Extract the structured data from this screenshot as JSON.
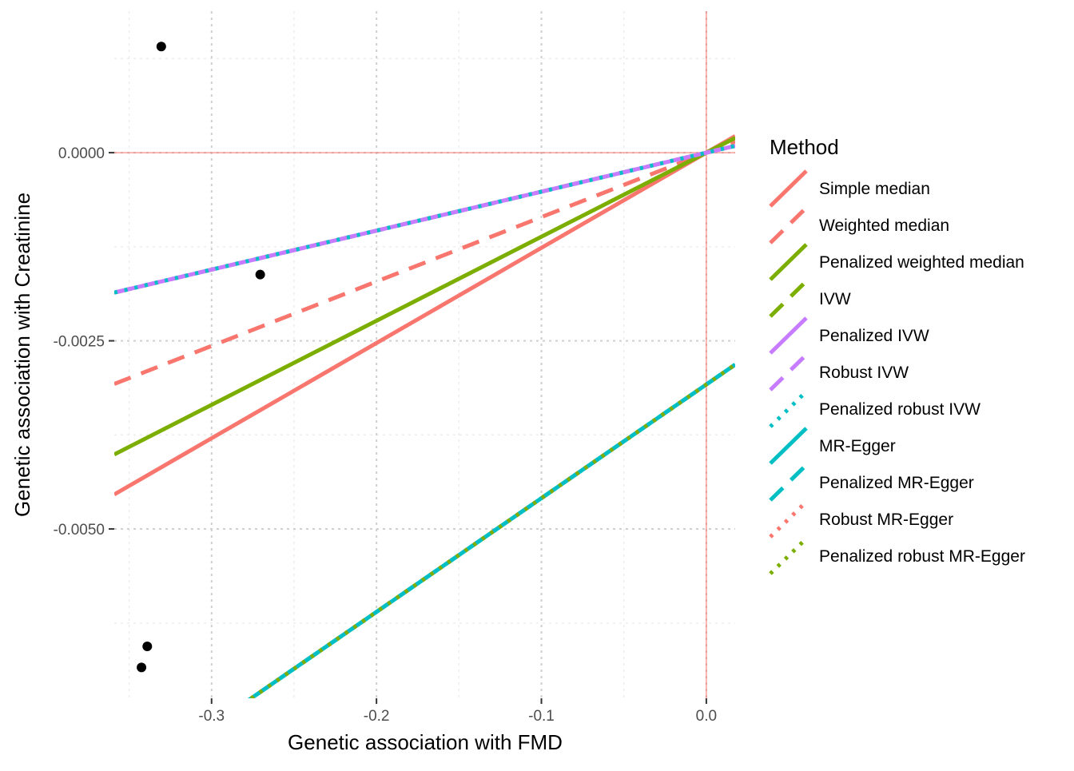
{
  "chart_data": {
    "type": "scatter",
    "title": "",
    "xlabel": "Genetic association with FMD",
    "ylabel": "Genetic association with Creatinine",
    "xlim": [
      -0.359,
      0.0175
    ],
    "ylim": [
      -0.00725,
      0.00188
    ],
    "x_ticks": [
      -0.3,
      -0.2,
      -0.1,
      0.0
    ],
    "x_tick_labels": [
      "-0.3",
      "-0.2",
      "-0.1",
      "0.0"
    ],
    "y_ticks": [
      0.0,
      -0.0025,
      -0.005
    ],
    "y_tick_labels": [
      "0.0000",
      "-0.0025",
      "-0.0050"
    ],
    "grid": true,
    "reference_lines": {
      "x": 0.0,
      "y": 0.0,
      "color": "#F8766D"
    },
    "points": [
      {
        "x": -0.3305,
        "y": 0.00141
      },
      {
        "x": -0.2705,
        "y": -0.00162
      },
      {
        "x": -0.339,
        "y": -0.00656
      },
      {
        "x": -0.3425,
        "y": -0.00684
      }
    ],
    "legend": {
      "title": "Method",
      "position": "right"
    },
    "series": [
      {
        "name": "Simple median",
        "type": "line",
        "color": "#F8766D",
        "dash": "solid",
        "intercept": 0.0,
        "slope": 0.01265
      },
      {
        "name": "Weighted median",
        "type": "line",
        "color": "#F8766D",
        "dash": "dashed",
        "intercept": 0.0,
        "slope": 0.00856
      },
      {
        "name": "Penalized weighted median",
        "type": "line",
        "color": "#7CAE00",
        "dash": "solid",
        "intercept": 0.0,
        "slope": 0.01117
      },
      {
        "name": "IVW",
        "type": "line",
        "color": "#7CAE00",
        "dash": "dashed",
        "intercept": 0.0,
        "slope": 0.00518
      },
      {
        "name": "Penalized IVW",
        "type": "line",
        "color": "#C77CFF",
        "dash": "solid",
        "intercept": 0.0,
        "slope": 0.00518
      },
      {
        "name": "Robust IVW",
        "type": "line",
        "color": "#C77CFF",
        "dash": "dashed",
        "intercept": 0.0,
        "slope": 0.00518
      },
      {
        "name": "Penalized robust IVW",
        "type": "line",
        "color": "#00BFC4",
        "dash": "dotted",
        "intercept": 0.0,
        "slope": 0.00518
      },
      {
        "name": "MR-Egger",
        "type": "line",
        "color": "#00BFC4",
        "dash": "solid",
        "intercept": -0.00308,
        "slope": 0.01511
      },
      {
        "name": "Penalized MR-Egger",
        "type": "line",
        "color": "#00BFC4",
        "dash": "dashed",
        "intercept": -0.00308,
        "slope": 0.01511
      },
      {
        "name": "Robust MR-Egger",
        "type": "line",
        "color": "#F8766D",
        "dash": "dotted",
        "intercept": -0.00308,
        "slope": 0.01511
      },
      {
        "name": "Penalized robust MR-Egger",
        "type": "line",
        "color": "#7CAE00",
        "dash": "dotted",
        "intercept": -0.00308,
        "slope": 0.01511
      }
    ]
  }
}
